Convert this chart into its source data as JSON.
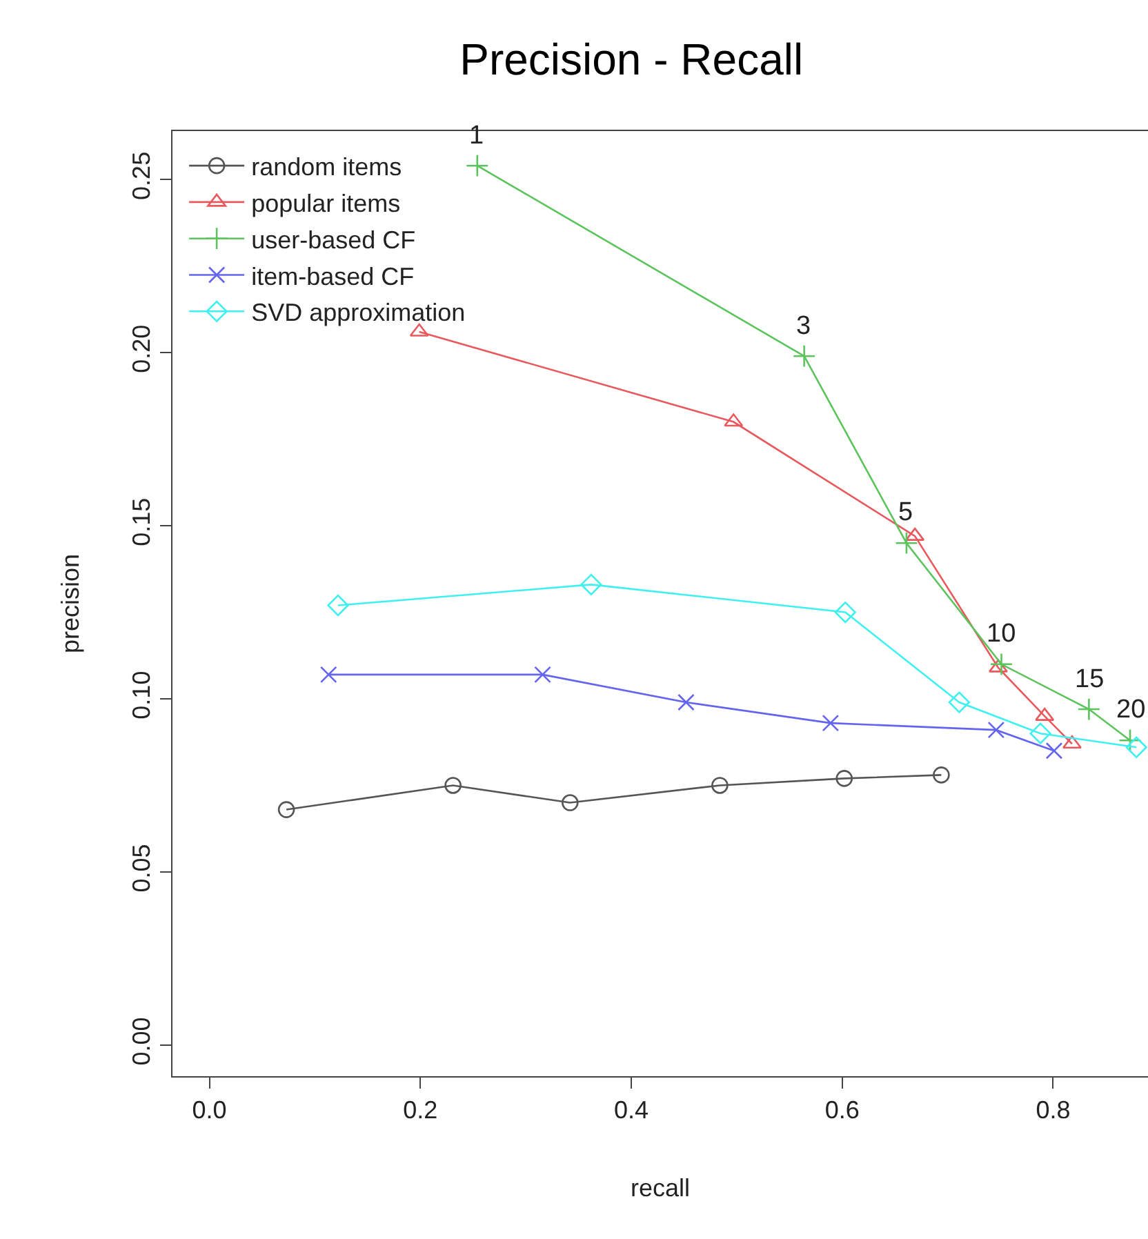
{
  "chart_data": {
    "type": "line",
    "title": "Precision - Recall",
    "xlabel": "recall",
    "ylabel": "precision",
    "xlim": [
      -0.035,
      0.89
    ],
    "ylim": [
      -0.009,
      0.264
    ],
    "xticks": [
      {
        "value": 0,
        "label": "0.0"
      },
      {
        "value": 0.2,
        "label": "0.2"
      },
      {
        "value": 0.4,
        "label": "0.4"
      },
      {
        "value": 0.6,
        "label": "0.6"
      },
      {
        "value": 0.8,
        "label": "0.8"
      }
    ],
    "yticks": [
      {
        "value": 0,
        "label": "0.00"
      },
      {
        "value": 0.05,
        "label": "0.05"
      },
      {
        "value": 0.1,
        "label": "0.10"
      },
      {
        "value": 0.15,
        "label": "0.15"
      },
      {
        "value": 0.2,
        "label": "0.20"
      },
      {
        "value": 0.25,
        "label": "0.25"
      }
    ],
    "grid": false,
    "legend": "top left",
    "line_style": "solid",
    "series": [
      {
        "name": "random items",
        "color": "#555555",
        "marker": "circle",
        "x": [
          0.073,
          0.231,
          0.342,
          0.484,
          0.602,
          0.694
        ],
        "values": [
          0.068,
          0.075,
          0.07,
          0.075,
          0.077,
          0.078
        ]
      },
      {
        "name": "popular items",
        "color": "#e8585c",
        "marker": "triangle",
        "x": [
          0.199,
          0.497,
          0.669,
          0.748,
          0.792,
          0.818
        ],
        "values": [
          0.206,
          0.18,
          0.147,
          0.109,
          0.095,
          0.087
        ]
      },
      {
        "name": "user-based CF",
        "color": "#5cc45c",
        "marker": "cross",
        "x": [
          0.254,
          0.564,
          0.661,
          0.751,
          0.834,
          0.873
        ],
        "values": [
          0.254,
          0.199,
          0.145,
          0.11,
          0.097,
          0.088
        ]
      },
      {
        "name": "item-based CF",
        "color": "#6464f0",
        "marker": "x",
        "x": [
          0.113,
          0.316,
          0.452,
          0.589,
          0.746,
          0.801
        ],
        "values": [
          0.107,
          0.107,
          0.099,
          0.093,
          0.091,
          0.085
        ]
      },
      {
        "name": "SVD approximation",
        "color": "#40f0f0",
        "marker": "diamond",
        "x": [
          0.122,
          0.362,
          0.603,
          0.711,
          0.788,
          0.879
        ],
        "values": [
          0.127,
          0.133,
          0.125,
          0.099,
          0.09,
          0.086
        ]
      }
    ],
    "annotations": [
      {
        "text": "1",
        "x": 0.254,
        "y": 0.254
      },
      {
        "text": "3",
        "x": 0.564,
        "y": 0.199
      },
      {
        "text": "5",
        "x": 0.661,
        "y": 0.145
      },
      {
        "text": "10",
        "x": 0.751,
        "y": 0.11
      },
      {
        "text": "15",
        "x": 0.834,
        "y": 0.097
      },
      {
        "text": "20",
        "x": 0.873,
        "y": 0.088
      }
    ]
  }
}
